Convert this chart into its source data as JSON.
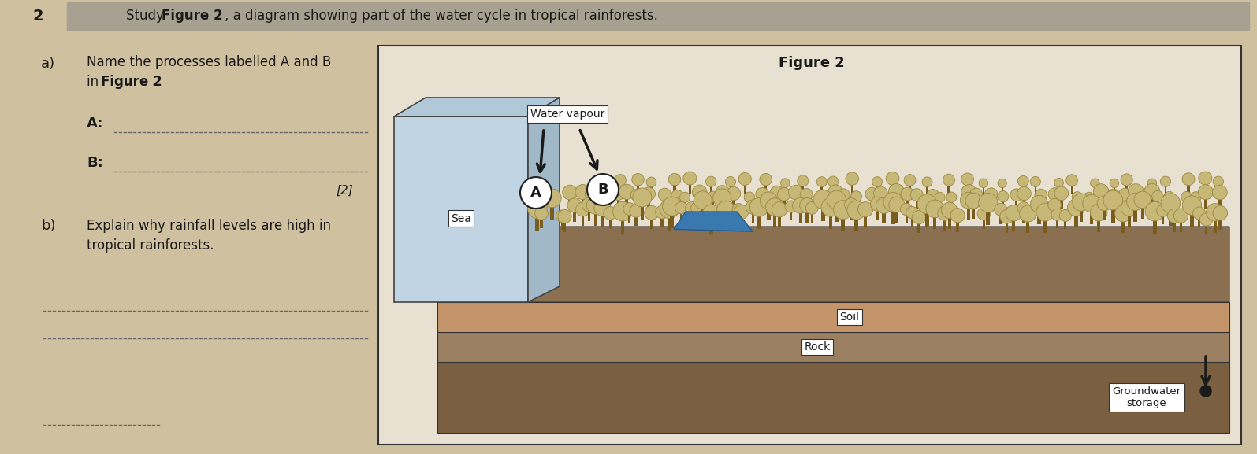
{
  "bg_color": "#cfc0a0",
  "header_bg": "#b0a898",
  "question_number": "2",
  "figure_title": "Figure 2",
  "sea_label": "Sea",
  "water_vapour_label": "Water vapour",
  "label_A": "A",
  "label_B": "B",
  "soil_label": "Soil",
  "rock_label": "Rock",
  "groundwater_label": "Groundwater\nstorage",
  "marks": "[2]",
  "sea_front_color": "#c8dce8",
  "sea_top_color": "#b8ccd8",
  "sea_side_color": "#a8bcc8",
  "ground_surface_color": "#9a8060",
  "soil_color": "#b89870",
  "rock_color": "#988060",
  "base_color": "#786850",
  "lake_color": "#4a80b8",
  "tree_trunk_color": "#7a5c20",
  "tree_top_color": "#c8b880",
  "arrow_color": "#1a1a1a",
  "text_color": "#1a1a1a",
  "fig_border_color": "#333333",
  "fig_bg_color": "#e8e0d0"
}
